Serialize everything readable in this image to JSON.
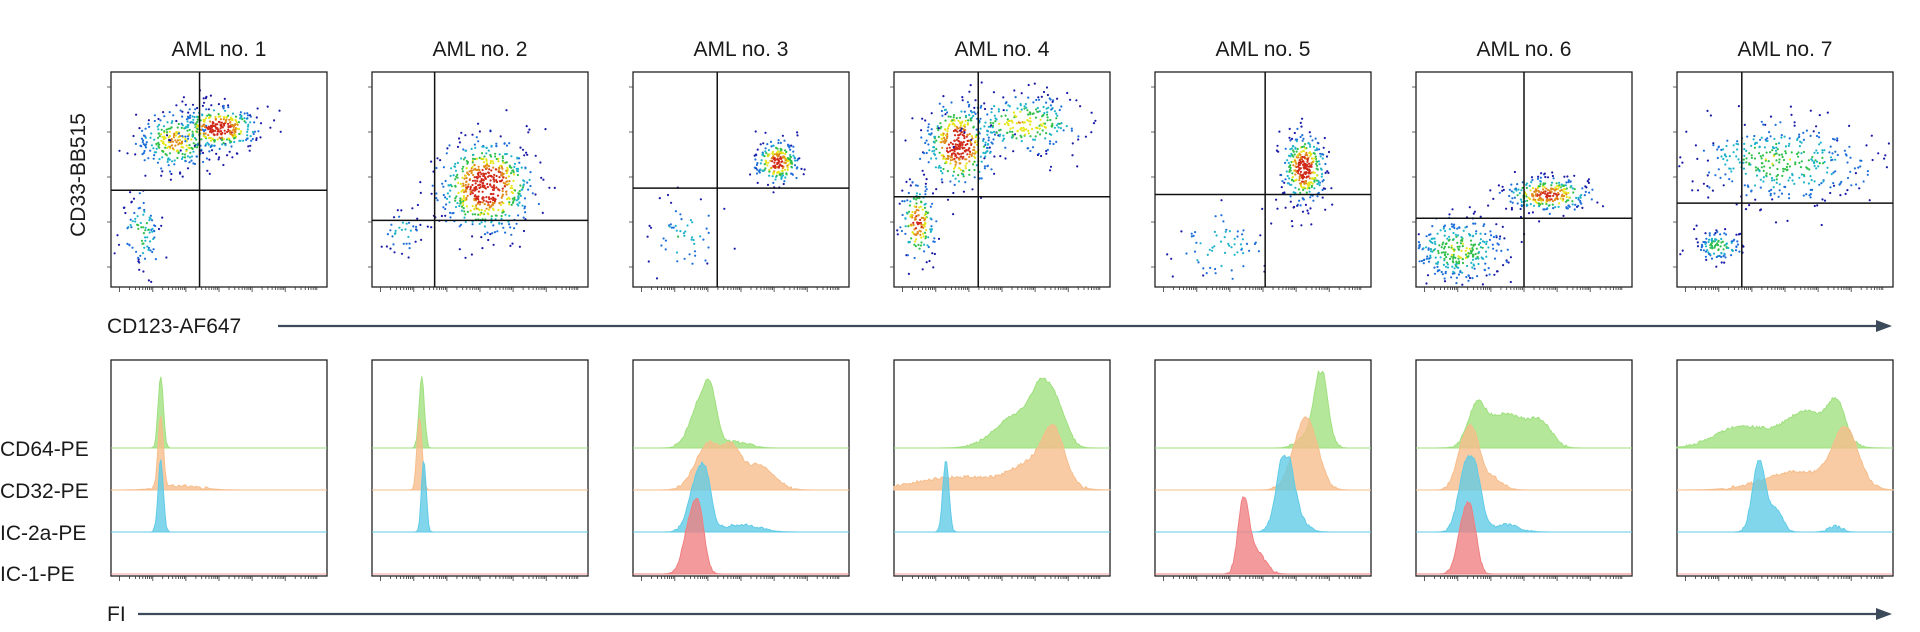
{
  "figure": {
    "top_panel_titles": [
      "AML no. 1",
      "AML no. 2",
      "AML no. 3",
      "AML no. 4",
      "AML no. 5",
      "AML no. 6",
      "AML no. 7"
    ],
    "top_y_label": "CD33-BB515",
    "top_x_label": "CD123-AF647",
    "bottom_x_label": "FI",
    "row_labels": [
      "CD64-PE",
      "CD32-PE",
      "IC-2a-PE",
      "IC-1-PE"
    ],
    "arrow_color": "#3d4a5c"
  },
  "chart_data": [
    {
      "type": "scatter",
      "description": "density dot plots, one per patient; values as fraction of axis range (0-1)",
      "xlabel": "CD123-AF647",
      "ylabel": "CD33-BB515",
      "xlim": [
        0,
        1
      ],
      "ylim": [
        0,
        1
      ],
      "colormap": [
        "#1a1aa6",
        "#1e6fd9",
        "#1fb4c9",
        "#2fbf4a",
        "#e6e619",
        "#e08a1a",
        "#d12a1a"
      ],
      "panels": [
        {
          "title": "AML no. 1",
          "gate_x": 0.41,
          "gate_y": 0.45,
          "clusters": [
            {
              "cx": 0.3,
              "cy": 0.68,
              "sx": 0.09,
              "sy": 0.07,
              "n": 260,
              "peak": 0.55
            },
            {
              "cx": 0.5,
              "cy": 0.74,
              "sx": 0.09,
              "sy": 0.05,
              "n": 340,
              "peak": 0.95
            },
            {
              "cx": 0.14,
              "cy": 0.26,
              "sx": 0.05,
              "sy": 0.09,
              "n": 90,
              "peak": 0.15
            }
          ]
        },
        {
          "title": "AML no. 2",
          "gate_x": 0.29,
          "gate_y": 0.31,
          "clusters": [
            {
              "cx": 0.53,
              "cy": 0.47,
              "sx": 0.11,
              "sy": 0.11,
              "n": 620,
              "peak": 1.0
            },
            {
              "cx": 0.14,
              "cy": 0.26,
              "sx": 0.05,
              "sy": 0.05,
              "n": 40,
              "peak": 0.1
            }
          ]
        },
        {
          "title": "AML no. 3",
          "gate_x": 0.39,
          "gate_y": 0.46,
          "clusters": [
            {
              "cx": 0.67,
              "cy": 0.58,
              "sx": 0.05,
              "sy": 0.05,
              "n": 230,
              "peak": 0.85
            },
            {
              "cx": 0.24,
              "cy": 0.23,
              "sx": 0.09,
              "sy": 0.1,
              "n": 55,
              "peak": 0.05
            }
          ]
        },
        {
          "title": "AML no. 4",
          "gate_x": 0.39,
          "gate_y": 0.42,
          "clusters": [
            {
              "cx": 0.3,
              "cy": 0.66,
              "sx": 0.08,
              "sy": 0.1,
              "n": 400,
              "peak": 0.95
            },
            {
              "cx": 0.6,
              "cy": 0.76,
              "sx": 0.14,
              "sy": 0.07,
              "n": 260,
              "peak": 0.45
            },
            {
              "cx": 0.11,
              "cy": 0.3,
              "sx": 0.04,
              "sy": 0.09,
              "n": 170,
              "peak": 0.75
            }
          ]
        },
        {
          "title": "AML no. 5",
          "gate_x": 0.51,
          "gate_y": 0.43,
          "clusters": [
            {
              "cx": 0.69,
              "cy": 0.55,
              "sx": 0.05,
              "sy": 0.08,
              "n": 360,
              "peak": 0.95
            },
            {
              "cx": 0.3,
              "cy": 0.18,
              "sx": 0.13,
              "sy": 0.09,
              "n": 70,
              "peak": 0.05
            }
          ]
        },
        {
          "title": "AML no. 6",
          "gate_x": 0.5,
          "gate_y": 0.32,
          "clusters": [
            {
              "cx": 0.61,
              "cy": 0.43,
              "sx": 0.1,
              "sy": 0.04,
              "n": 300,
              "peak": 0.8
            },
            {
              "cx": 0.2,
              "cy": 0.17,
              "sx": 0.12,
              "sy": 0.08,
              "n": 330,
              "peak": 0.3
            }
          ]
        },
        {
          "title": "AML no. 7",
          "gate_x": 0.3,
          "gate_y": 0.39,
          "clusters": [
            {
              "cx": 0.48,
              "cy": 0.58,
              "sx": 0.22,
              "sy": 0.1,
              "n": 380,
              "peak": 0.25
            },
            {
              "cx": 0.19,
              "cy": 0.19,
              "sx": 0.06,
              "sy": 0.04,
              "n": 110,
              "peak": 0.2
            }
          ]
        }
      ]
    },
    {
      "type": "area",
      "description": "stacked offset histograms of fluorescence intensity; peaks as [center, width, relative height] on 0-1 axis",
      "xlabel": "FI",
      "ylabel": "",
      "xlim": [
        0,
        1
      ],
      "series_names": [
        "CD64-PE",
        "CD32-PE",
        "IC-2a-PE",
        "IC-1-PE"
      ],
      "series_colors": [
        "#9fe07e",
        "#f6bd8b",
        "#5fcbe6",
        "#ef7f80"
      ],
      "panels": [
        {
          "title": "AML no. 1",
          "peaks": {
            "CD64-PE": [
              [
                0.23,
                0.012,
                1.0
              ]
            ],
            "CD32-PE": [
              [
                0.23,
                0.012,
                1.0
              ],
              [
                0.32,
                0.09,
                0.06
              ]
            ],
            "IC-2a-PE": [
              [
                0.23,
                0.012,
                1.0
              ]
            ],
            "IC-1-PE": []
          }
        },
        {
          "title": "AML no. 2",
          "peaks": {
            "CD64-PE": [
              [
                0.23,
                0.012,
                1.0
              ]
            ],
            "CD32-PE": [
              [
                0.22,
                0.012,
                1.0
              ]
            ],
            "IC-2a-PE": [
              [
                0.24,
                0.011,
                1.0
              ]
            ],
            "IC-1-PE": []
          }
        },
        {
          "title": "AML no. 3",
          "peaks": {
            "CD64-PE": [
              [
                0.32,
                0.05,
                0.7
              ],
              [
                0.36,
                0.025,
                0.4
              ],
              [
                0.48,
                0.06,
                0.08
              ]
            ],
            "CD32-PE": [
              [
                0.35,
                0.06,
                0.65
              ],
              [
                0.46,
                0.04,
                0.45
              ],
              [
                0.58,
                0.07,
                0.35
              ]
            ],
            "IC-2a-PE": [
              [
                0.3,
                0.04,
                0.75
              ],
              [
                0.34,
                0.025,
                0.4
              ],
              [
                0.5,
                0.08,
                0.1
              ]
            ],
            "IC-1-PE": [
              [
                0.27,
                0.035,
                0.75
              ],
              [
                0.31,
                0.025,
                0.55
              ]
            ]
          }
        },
        {
          "title": "AML no. 4",
          "peaks": {
            "CD64-PE": [
              [
                0.57,
                0.1,
                0.45
              ],
              [
                0.69,
                0.05,
                0.7
              ],
              [
                0.77,
                0.04,
                0.35
              ]
            ],
            "CD32-PE": [
              [
                0.3,
                0.2,
                0.18
              ],
              [
                0.65,
                0.1,
                0.35
              ],
              [
                0.74,
                0.05,
                0.65
              ]
            ],
            "IC-2a-PE": [
              [
                0.24,
                0.014,
                1.0
              ]
            ],
            "IC-1-PE": []
          }
        },
        {
          "title": "AML no. 5",
          "peaks": {
            "CD64-PE": [
              [
                0.77,
                0.03,
                1.0
              ],
              [
                0.72,
                0.05,
                0.2
              ]
            ],
            "CD32-PE": [
              [
                0.71,
                0.05,
                0.8
              ],
              [
                0.66,
                0.05,
                0.3
              ]
            ],
            "IC-2a-PE": [
              [
                0.6,
                0.035,
                0.95
              ],
              [
                0.63,
                0.05,
                0.3
              ]
            ],
            "IC-1-PE": [
              [
                0.41,
                0.025,
                1.0
              ],
              [
                0.47,
                0.04,
                0.3
              ]
            ]
          }
        },
        {
          "title": "AML no. 6",
          "peaks": {
            "CD64-PE": [
              [
                0.28,
                0.04,
                0.5
              ],
              [
                0.42,
                0.09,
                0.48
              ],
              [
                0.58,
                0.05,
                0.3
              ]
            ],
            "CD32-PE": [
              [
                0.22,
                0.035,
                0.6
              ],
              [
                0.27,
                0.03,
                0.55
              ],
              [
                0.34,
                0.05,
                0.2
              ]
            ],
            "IC-2a-PE": [
              [
                0.23,
                0.035,
                0.85
              ],
              [
                0.28,
                0.03,
                0.6
              ],
              [
                0.42,
                0.06,
                0.1
              ]
            ],
            "IC-1-PE": [
              [
                0.22,
                0.03,
                0.7
              ],
              [
                0.26,
                0.025,
                0.6
              ]
            ]
          }
        },
        {
          "title": "AML no. 7",
          "peaks": {
            "CD64-PE": [
              [
                0.3,
                0.12,
                0.3
              ],
              [
                0.6,
                0.1,
                0.5
              ],
              [
                0.74,
                0.04,
                0.5
              ]
            ],
            "CD32-PE": [
              [
                0.55,
                0.15,
                0.25
              ],
              [
                0.78,
                0.06,
                0.8
              ]
            ],
            "IC-2a-PE": [
              [
                0.38,
                0.03,
                1.0
              ],
              [
                0.46,
                0.03,
                0.3
              ],
              [
                0.73,
                0.03,
                0.08
              ]
            ],
            "IC-1-PE": []
          }
        }
      ]
    }
  ]
}
